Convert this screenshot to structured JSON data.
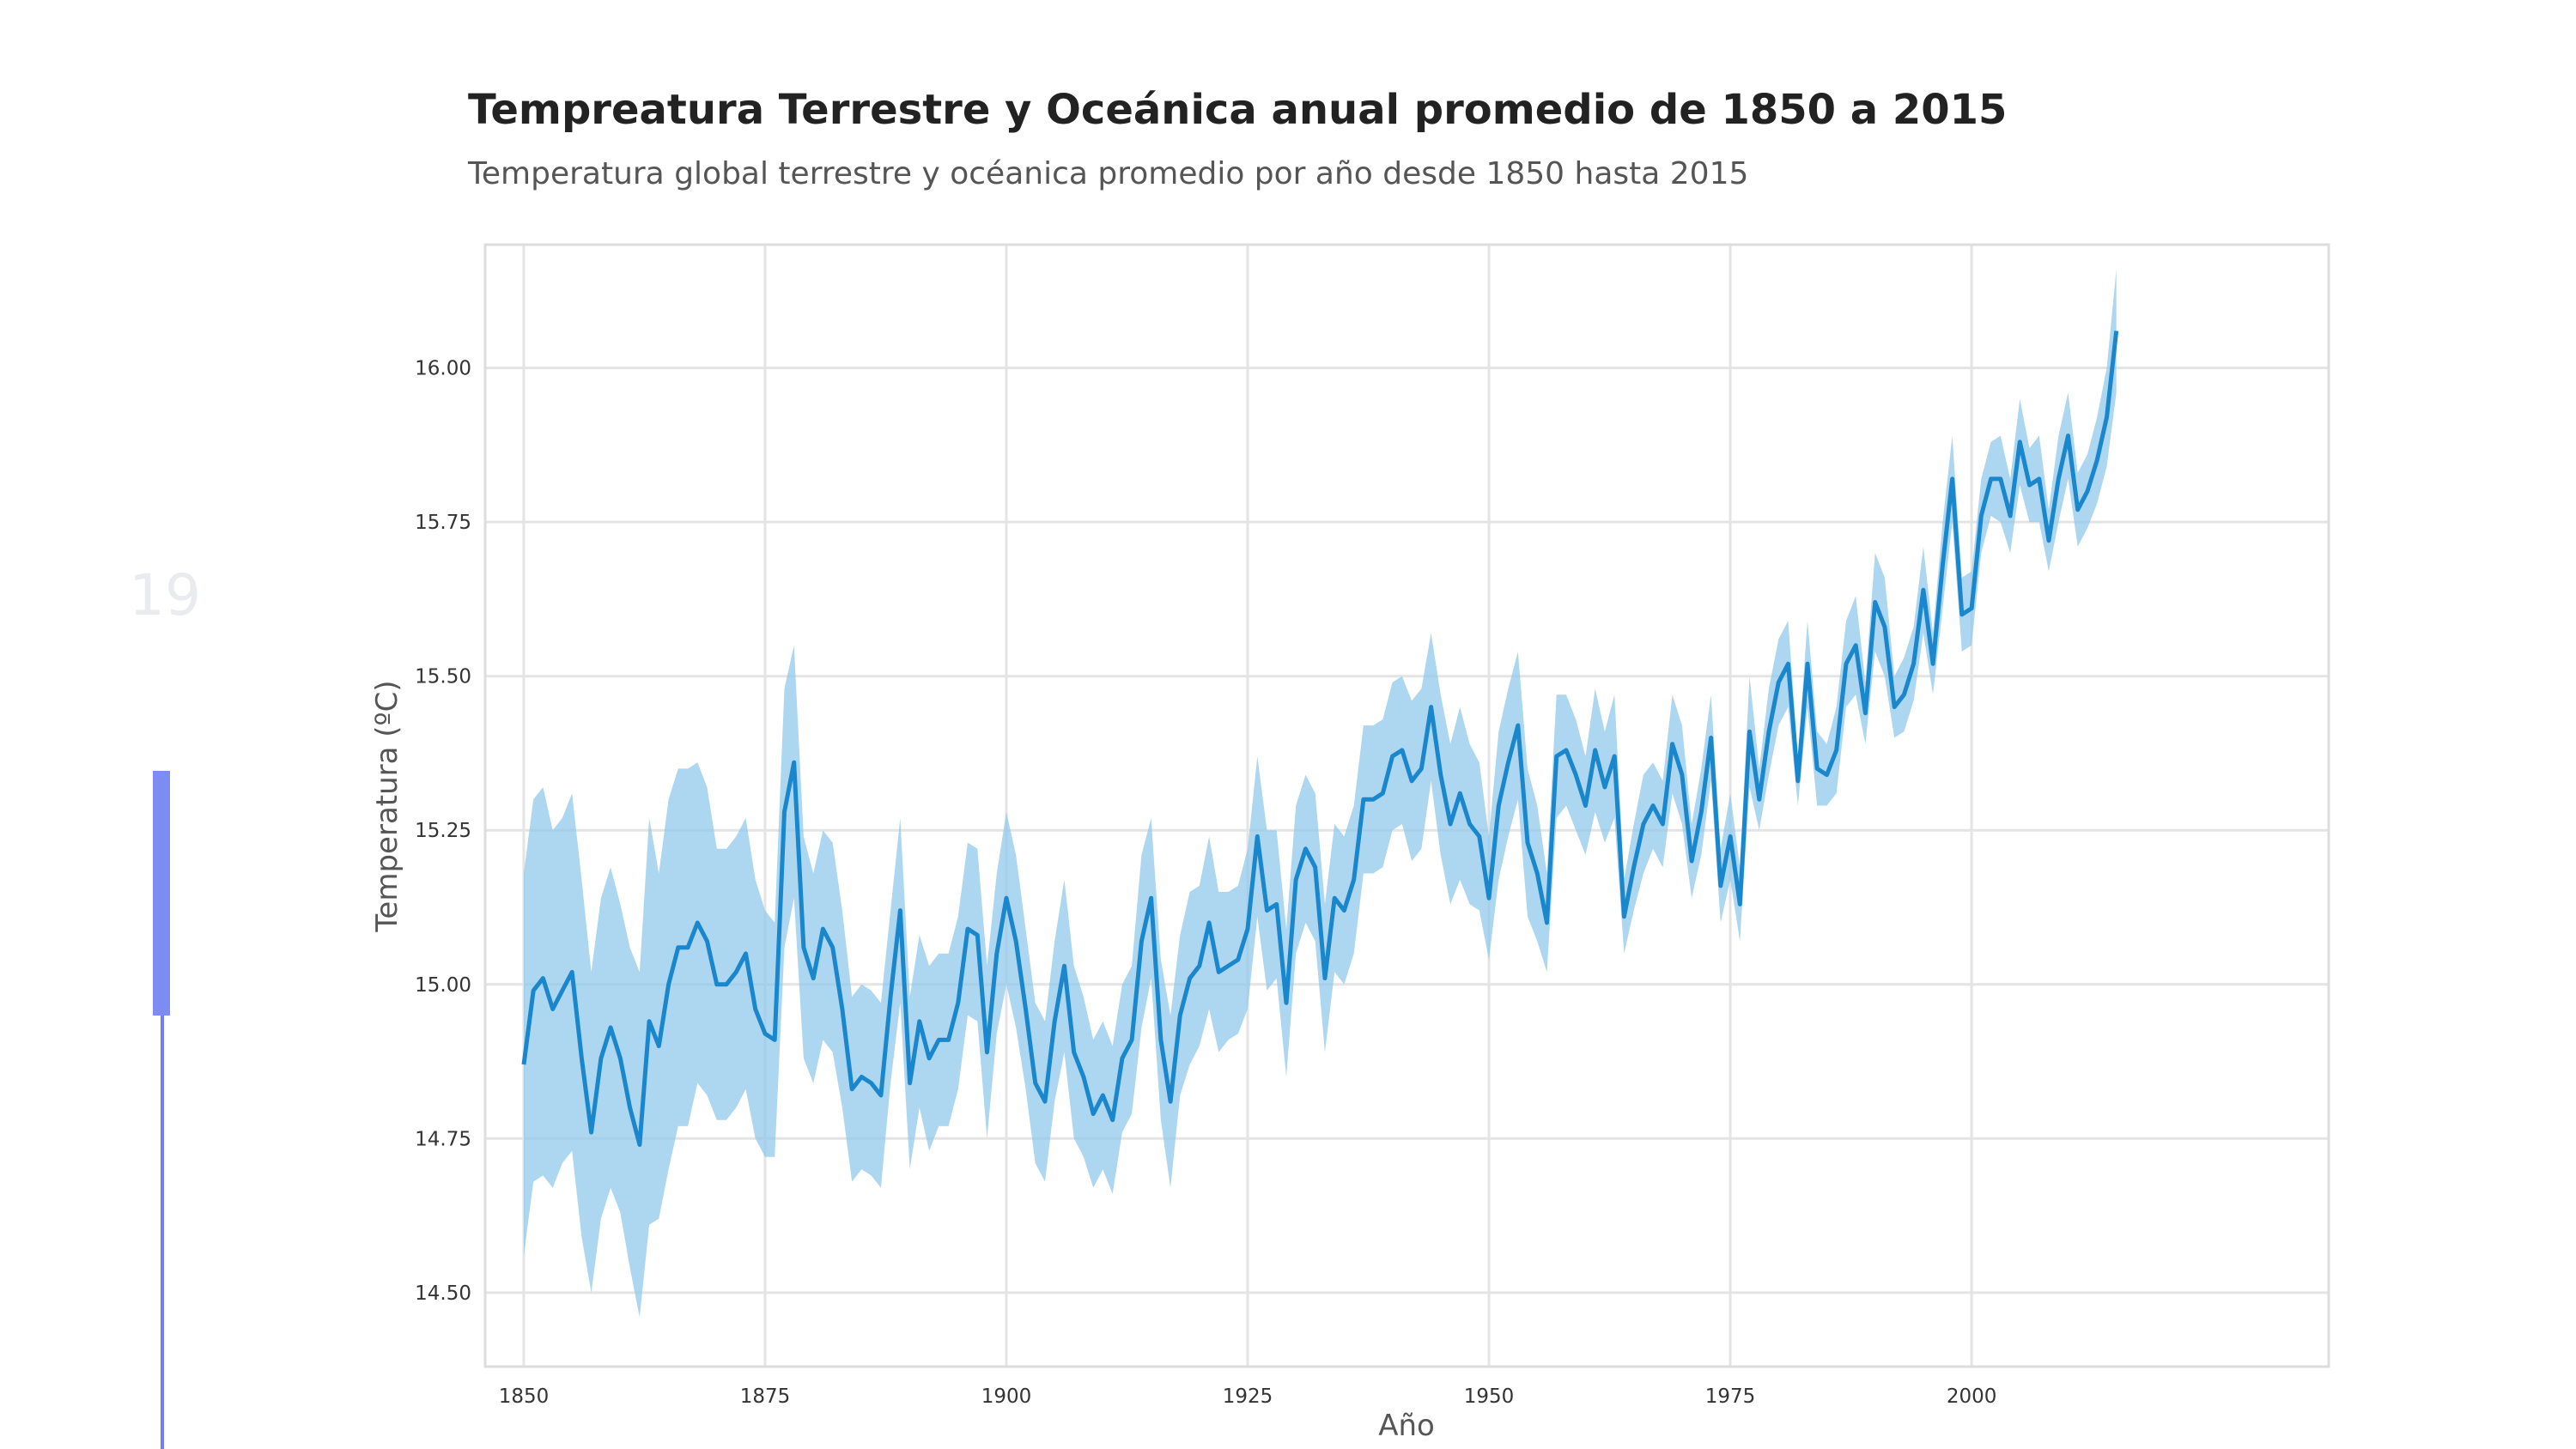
{
  "slide": {
    "number": "19"
  },
  "chart_data": {
    "type": "line",
    "title": "Tempreatura Terrestre y Oceánica anual promedio de 1850 a 2015",
    "subtitle": "Temperatura global terrestre y océanica promedio por año desde 1850 hasta 2015",
    "xlabel": "Año",
    "ylabel": "Temperatura (ºC)",
    "xlim": [
      1846,
      2037
    ],
    "ylim": [
      14.38,
      16.2
    ],
    "grid": true,
    "x_ticks": [
      1850,
      1875,
      1900,
      1925,
      1950,
      1975,
      2000
    ],
    "x_tick_labels": [
      "1850",
      "1875",
      "1900",
      "1925",
      "1950",
      "1975",
      "2000"
    ],
    "y_ticks": [
      14.5,
      14.75,
      15.0,
      15.25,
      15.5,
      15.75,
      16.0
    ],
    "y_tick_labels": [
      "14.50",
      "14.75",
      "15.00",
      "15.25",
      "15.50",
      "15.75",
      "16.00"
    ],
    "colors": {
      "line": "#1a86cc",
      "band": "#8ec8ea",
      "grid": "#e4e4e4",
      "frame": "#dddddd",
      "tick_text": "#333333",
      "label_text": "#555555"
    },
    "series": [
      {
        "x_start": 1850,
        "values": [
          14.87,
          14.99,
          15.01,
          14.96,
          14.99,
          15.02,
          14.88,
          14.76,
          14.88,
          14.93,
          14.88,
          14.8,
          14.74,
          14.94,
          14.9,
          15.0,
          15.06,
          15.06,
          15.1,
          15.07,
          15.0,
          15.0,
          15.02,
          15.05,
          14.96,
          14.92,
          14.91,
          15.28,
          15.36,
          15.06,
          15.01,
          15.09,
          15.06,
          14.96,
          14.83,
          14.85,
          14.84,
          14.82,
          14.98,
          15.12,
          14.84,
          14.94,
          14.88,
          14.91,
          14.91,
          14.97,
          15.09,
          15.08,
          14.89,
          15.05,
          15.14,
          15.07,
          14.96,
          14.84,
          14.81,
          14.94,
          15.03,
          14.89,
          14.85,
          14.79,
          14.82,
          14.78,
          14.88,
          14.91,
          15.07,
          15.14,
          14.91,
          14.81,
          14.95,
          15.01,
          15.03,
          15.1,
          15.02,
          15.03,
          15.04,
          15.09,
          15.24,
          15.12,
          15.13,
          14.97,
          15.17,
          15.22,
          15.19,
          15.01,
          15.14,
          15.12,
          15.17,
          15.3,
          15.3,
          15.31,
          15.37,
          15.38,
          15.33,
          15.35,
          15.45,
          15.34,
          15.26,
          15.31,
          15.26,
          15.24,
          15.14,
          15.29,
          15.36,
          15.42,
          15.23,
          15.18,
          15.1,
          15.37,
          15.38,
          15.34,
          15.29,
          15.38,
          15.32,
          15.37,
          15.11,
          15.19,
          15.26,
          15.29,
          15.26,
          15.39,
          15.34,
          15.2,
          15.28,
          15.4,
          15.16,
          15.24,
          15.13,
          15.41,
          15.3,
          15.41,
          15.49,
          15.52,
          15.33,
          15.52,
          15.35,
          15.34,
          15.38,
          15.52,
          15.55,
          15.44,
          15.62,
          15.58,
          15.45,
          15.47,
          15.52,
          15.64,
          15.52,
          15.68,
          15.82,
          15.6,
          15.61,
          15.76,
          15.82,
          15.82,
          15.76,
          15.88,
          15.81,
          15.82,
          15.72,
          15.82,
          15.89,
          15.77,
          15.8,
          15.85,
          15.92,
          16.06
        ],
        "ci_lower": [
          14.56,
          14.68,
          14.69,
          14.67,
          14.71,
          14.73,
          14.59,
          14.5,
          14.62,
          14.67,
          14.63,
          14.54,
          14.46,
          14.61,
          14.62,
          14.7,
          14.77,
          14.77,
          14.84,
          14.82,
          14.78,
          14.78,
          14.8,
          14.83,
          14.75,
          14.72,
          14.72,
          15.06,
          15.14,
          14.88,
          14.84,
          14.91,
          14.89,
          14.8,
          14.68,
          14.7,
          14.69,
          14.67,
          14.84,
          14.97,
          14.7,
          14.8,
          14.73,
          14.77,
          14.77,
          14.83,
          14.95,
          14.94,
          14.75,
          14.92,
          15.0,
          14.93,
          14.83,
          14.71,
          14.68,
          14.81,
          14.89,
          14.75,
          14.72,
          14.67,
          14.7,
          14.66,
          14.76,
          14.79,
          14.93,
          15.01,
          14.78,
          14.67,
          14.82,
          14.87,
          14.9,
          14.96,
          14.89,
          14.91,
          14.92,
          14.96,
          15.11,
          14.99,
          15.01,
          14.85,
          15.05,
          15.1,
          15.07,
          14.89,
          15.02,
          15.0,
          15.05,
          15.18,
          15.18,
          15.19,
          15.25,
          15.26,
          15.2,
          15.22,
          15.33,
          15.21,
          15.13,
          15.17,
          15.13,
          15.12,
          15.04,
          15.17,
          15.24,
          15.3,
          15.11,
          15.07,
          15.02,
          15.27,
          15.29,
          15.25,
          15.21,
          15.28,
          15.23,
          15.27,
          15.05,
          15.12,
          15.18,
          15.22,
          15.19,
          15.31,
          15.26,
          15.14,
          15.21,
          15.33,
          15.1,
          15.17,
          15.07,
          15.32,
          15.25,
          15.34,
          15.42,
          15.45,
          15.29,
          15.45,
          15.29,
          15.29,
          15.31,
          15.45,
          15.47,
          15.39,
          15.54,
          15.5,
          15.4,
          15.41,
          15.46,
          15.57,
          15.47,
          15.61,
          15.75,
          15.54,
          15.55,
          15.7,
          15.76,
          15.75,
          15.7,
          15.81,
          15.75,
          15.75,
          15.67,
          15.75,
          15.82,
          15.71,
          15.74,
          15.78,
          15.84,
          15.96
        ],
        "ci_upper": [
          15.18,
          15.3,
          15.32,
          15.25,
          15.27,
          15.31,
          15.17,
          15.02,
          15.14,
          15.19,
          15.13,
          15.06,
          15.02,
          15.27,
          15.18,
          15.3,
          15.35,
          15.35,
          15.36,
          15.32,
          15.22,
          15.22,
          15.24,
          15.27,
          15.17,
          15.12,
          15.1,
          15.48,
          15.55,
          15.24,
          15.18,
          15.25,
          15.23,
          15.12,
          14.98,
          15.0,
          14.99,
          14.97,
          15.12,
          15.27,
          14.98,
          15.08,
          15.03,
          15.05,
          15.05,
          15.11,
          15.23,
          15.22,
          15.03,
          15.18,
          15.28,
          15.21,
          15.09,
          14.97,
          14.94,
          15.07,
          15.17,
          15.03,
          14.98,
          14.91,
          14.94,
          14.9,
          15.0,
          15.03,
          15.21,
          15.27,
          15.04,
          14.95,
          15.08,
          15.15,
          15.16,
          15.24,
          15.15,
          15.15,
          15.16,
          15.22,
          15.37,
          15.25,
          15.25,
          15.09,
          15.29,
          15.34,
          15.31,
          15.13,
          15.26,
          15.24,
          15.29,
          15.42,
          15.42,
          15.43,
          15.49,
          15.5,
          15.46,
          15.48,
          15.57,
          15.47,
          15.39,
          15.45,
          15.39,
          15.36,
          15.24,
          15.41,
          15.48,
          15.54,
          15.35,
          15.29,
          15.18,
          15.47,
          15.47,
          15.43,
          15.37,
          15.48,
          15.41,
          15.47,
          15.17,
          15.26,
          15.34,
          15.36,
          15.33,
          15.47,
          15.42,
          15.26,
          15.35,
          15.47,
          15.22,
          15.31,
          15.19,
          15.5,
          15.35,
          15.48,
          15.56,
          15.59,
          15.37,
          15.59,
          15.41,
          15.39,
          15.45,
          15.59,
          15.63,
          15.49,
          15.7,
          15.66,
          15.5,
          15.53,
          15.58,
          15.71,
          15.57,
          15.75,
          15.89,
          15.66,
          15.67,
          15.82,
          15.88,
          15.89,
          15.82,
          15.95,
          15.87,
          15.89,
          15.77,
          15.89,
          15.96,
          15.83,
          15.86,
          15.92,
          16.0,
          16.16
        ]
      }
    ]
  }
}
